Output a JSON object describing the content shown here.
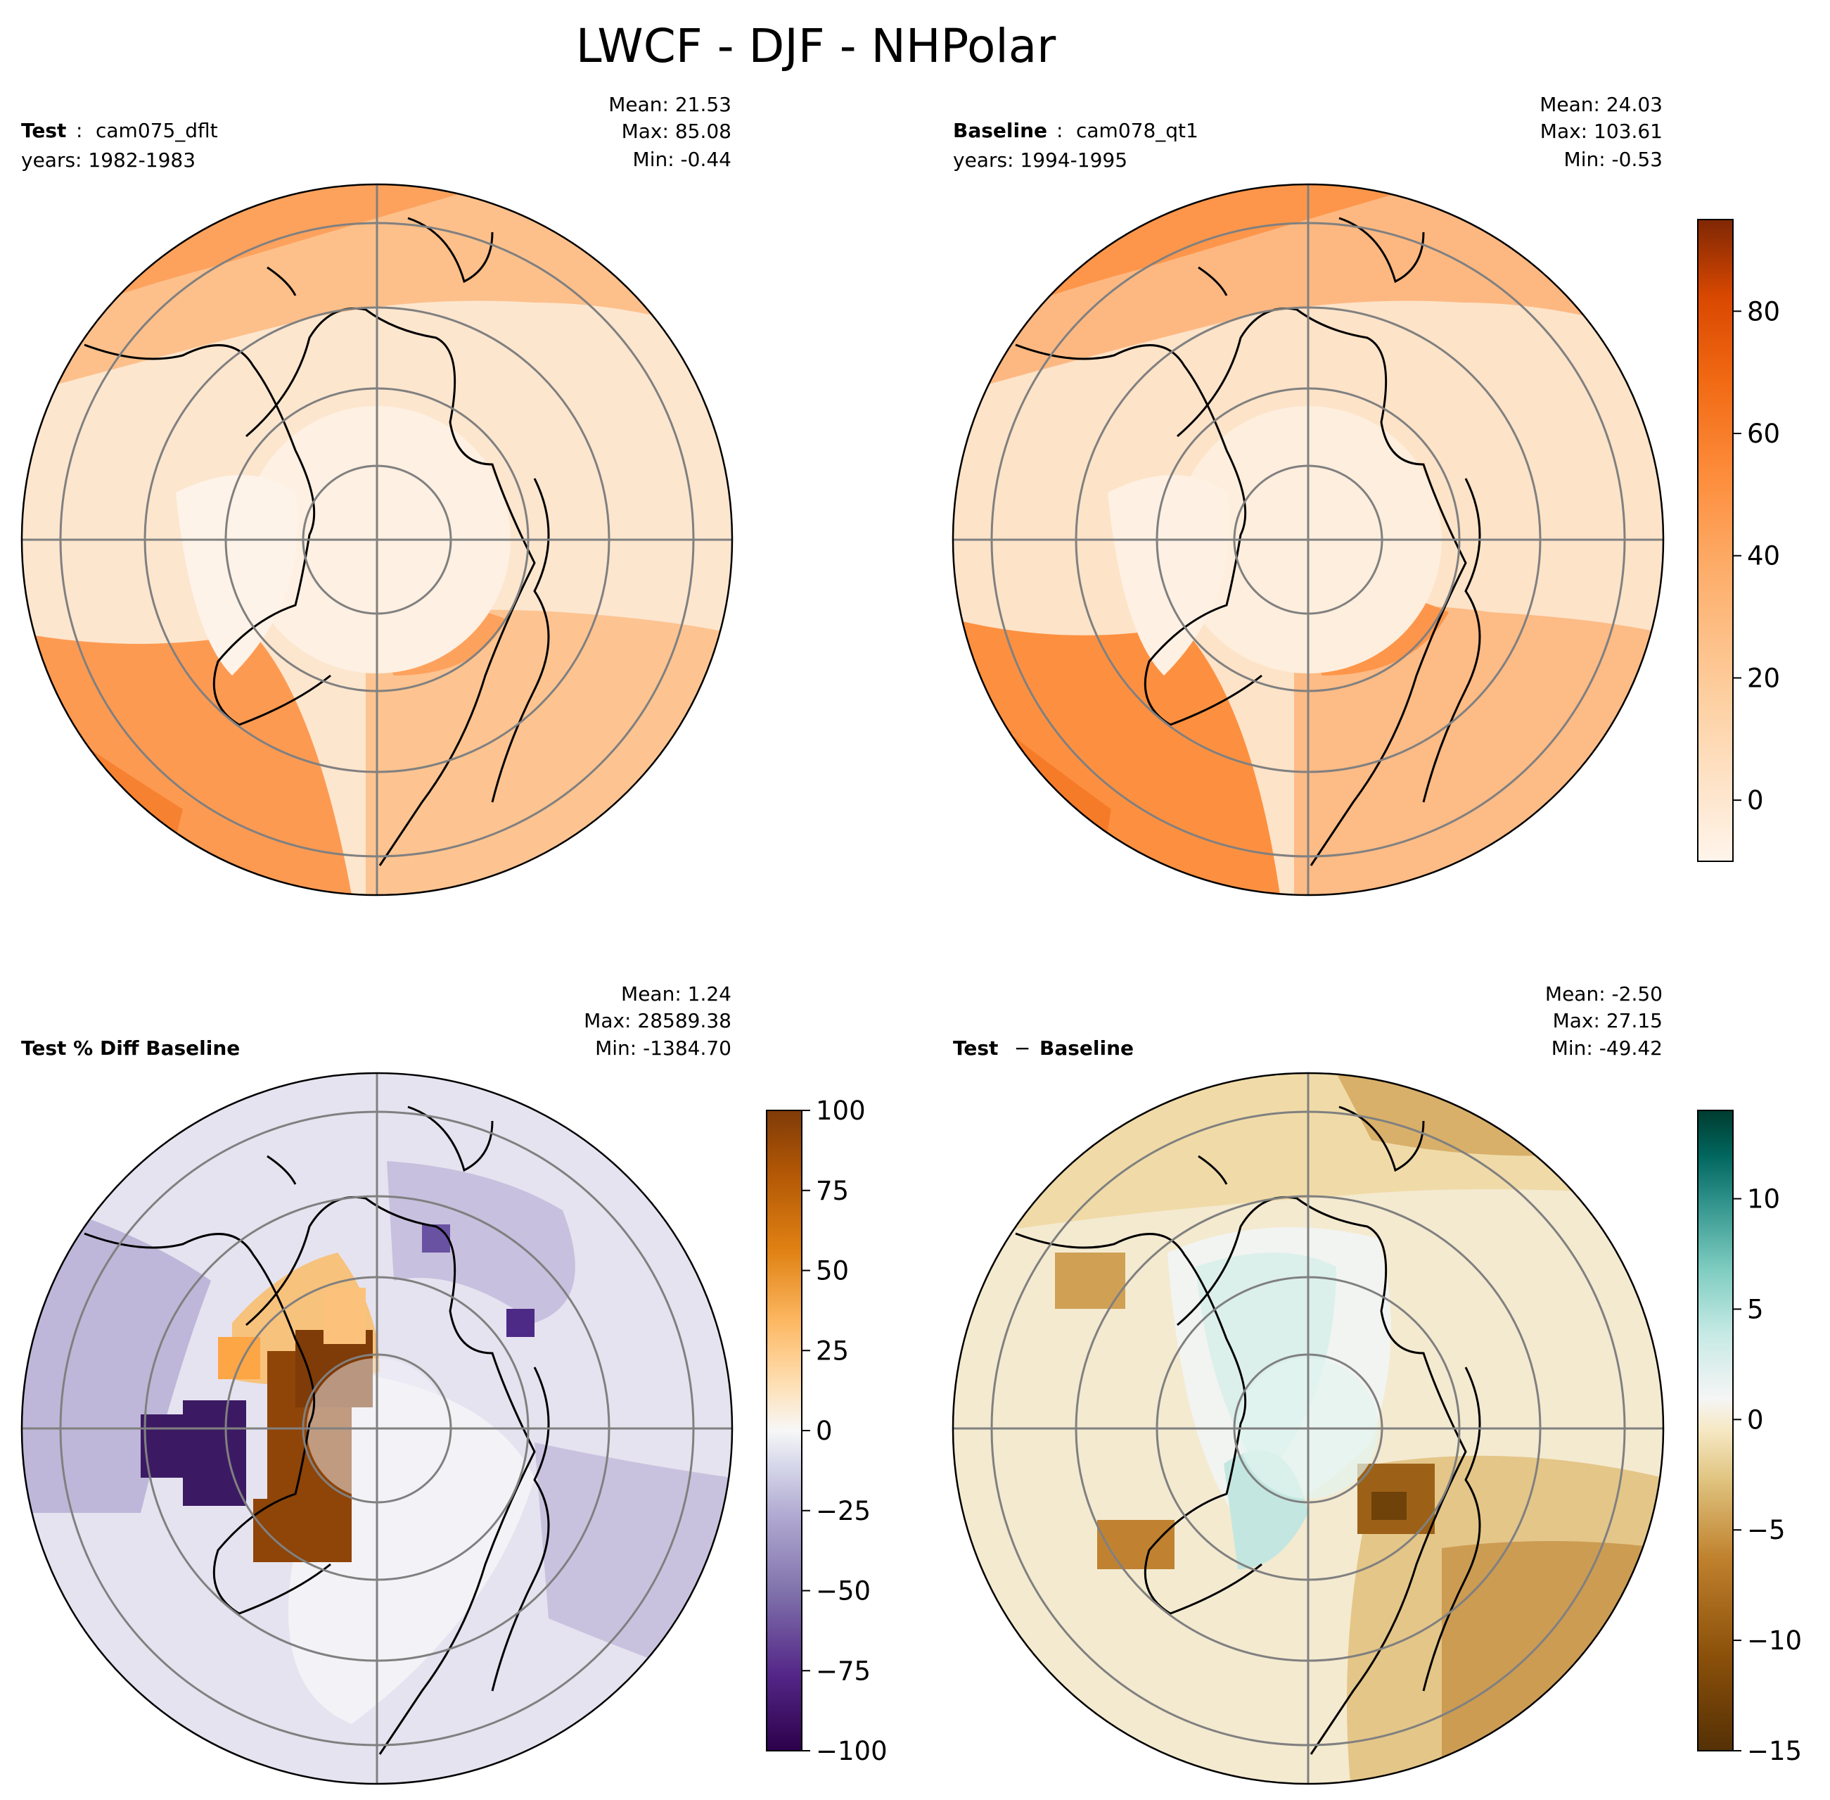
{
  "figure": {
    "title": "LWCF - DJF - NHPolar"
  },
  "chart_data": [
    {
      "type": "heatmap",
      "panel": "test",
      "label_bold": "Test",
      "label_sep": ":",
      "label_case": "cam075_dflt",
      "years_line": "years: 1982-1983",
      "stats": {
        "mean": "Mean: 21.53",
        "max": "Max: 85.08",
        "min": "Min: -0.44"
      },
      "projection": "north-polar-stereographic",
      "colormap": "Oranges",
      "vmin": -10,
      "vmax": 95,
      "field_description": "LWCF values roughly 0-10 over central Arctic, ~20-30 over Siberia/Canada, ~40-50 over North Atlantic and North Pacific",
      "regions": [
        {
          "lon": 0,
          "lat": 60,
          "value": 45
        },
        {
          "lon": -30,
          "lat": 55,
          "value": 48
        },
        {
          "lon": 180,
          "lat": 50,
          "value": 42
        },
        {
          "lon": -150,
          "lat": 50,
          "value": 40
        },
        {
          "lon": 90,
          "lat": 65,
          "value": 18
        },
        {
          "lon": -100,
          "lat": 65,
          "value": 12
        },
        {
          "lon": 0,
          "lat": 85,
          "value": 8
        },
        {
          "lon": -40,
          "lat": 72,
          "value": 10
        }
      ]
    },
    {
      "type": "heatmap",
      "panel": "baseline",
      "label_bold": "Baseline",
      "label_sep": ":",
      "label_case": "cam078_qt1",
      "years_line": "years: 1994-1995",
      "stats": {
        "mean": "Mean: 24.03",
        "max": "Max: 103.61",
        "min": "Min: -0.53"
      },
      "projection": "north-polar-stereographic",
      "colormap": "Oranges",
      "vmin": -10,
      "vmax": 95,
      "colorbar": {
        "ticks": [
          0,
          20,
          40,
          60,
          80
        ],
        "tick_labels": [
          "0",
          "20",
          "40",
          "60",
          "80"
        ],
        "range": [
          -10,
          95
        ]
      },
      "regions": [
        {
          "lon": 0,
          "lat": 60,
          "value": 50
        },
        {
          "lon": -30,
          "lat": 55,
          "value": 52
        },
        {
          "lon": 180,
          "lat": 50,
          "value": 46
        },
        {
          "lon": -150,
          "lat": 50,
          "value": 44
        },
        {
          "lon": 90,
          "lat": 65,
          "value": 22
        },
        {
          "lon": -100,
          "lat": 65,
          "value": 14
        },
        {
          "lon": 0,
          "lat": 85,
          "value": 9
        },
        {
          "lon": -40,
          "lat": 72,
          "value": 12
        }
      ]
    },
    {
      "type": "heatmap",
      "panel": "pct_diff",
      "label_bold": "Test % Diff Baseline",
      "stats": {
        "mean": "Mean:  1.24",
        "max": "Max: 28589.38",
        "min": "Min: -1384.70"
      },
      "projection": "north-polar-stereographic",
      "colormap": "PuOr_r",
      "vmin": -100,
      "vmax": 100,
      "colorbar": {
        "ticks": [
          100,
          75,
          50,
          25,
          0,
          -25,
          -50,
          -75,
          -100
        ],
        "tick_labels": [
          "100",
          "75",
          "50",
          "25",
          "0",
          "−25",
          "−50",
          "−75",
          "−100"
        ],
        "range": [
          -100,
          100
        ]
      },
      "regions": [
        {
          "lon": -70,
          "lat": 78,
          "value": 100
        },
        {
          "lon": -90,
          "lat": 75,
          "value": -90
        },
        {
          "lon": 150,
          "lat": 72,
          "value": -55
        },
        {
          "lon": 120,
          "lat": 60,
          "value": -35
        },
        {
          "lon": -130,
          "lat": 60,
          "value": -40
        },
        {
          "lon": 0,
          "lat": 60,
          "value": -5
        },
        {
          "lon": 60,
          "lat": 70,
          "value": -30
        }
      ]
    },
    {
      "type": "heatmap",
      "panel": "diff",
      "label_bold": "Test",
      "label_sep": " − ",
      "label_case_bold": "Baseline",
      "stats": {
        "mean": "Mean: -2.50",
        "max": "Max: 27.15",
        "min": "Min: -49.42"
      },
      "projection": "north-polar-stereographic",
      "colormap": "BrBG",
      "vmin": -15,
      "vmax": 14,
      "colorbar": {
        "ticks": [
          10,
          5,
          0,
          -5,
          -10,
          -15
        ],
        "tick_labels": [
          "10",
          "5",
          "0",
          "−5",
          "−10",
          "−15"
        ],
        "range": [
          -15,
          14
        ]
      },
      "regions": [
        {
          "lon": -40,
          "lat": 72,
          "value": 4
        },
        {
          "lon": 0,
          "lat": 85,
          "value": 2
        },
        {
          "lon": 20,
          "lat": 55,
          "value": -10
        },
        {
          "lon": 40,
          "lat": 50,
          "value": -9
        },
        {
          "lon": 160,
          "lat": 55,
          "value": -7
        },
        {
          "lon": -150,
          "lat": 55,
          "value": -6
        },
        {
          "lon": -60,
          "lat": 55,
          "value": -8
        }
      ]
    }
  ]
}
